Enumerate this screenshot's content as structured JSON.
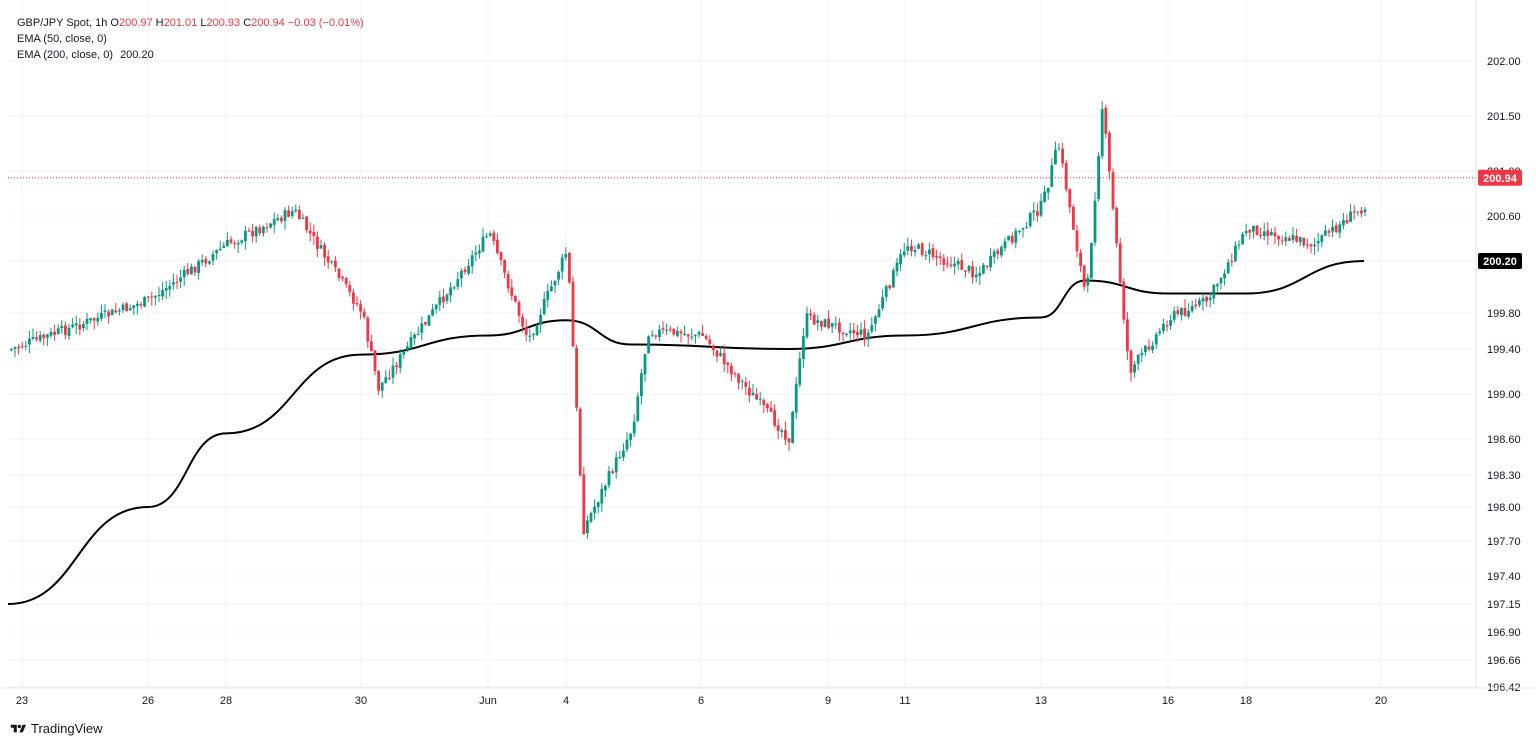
{
  "legend": {
    "symbol": "GBP/JPY Spot",
    "interval": "1h",
    "open_label": "O",
    "open": "200.97",
    "high_label": "H",
    "high": "201.01",
    "low_label": "L",
    "low": "200.93",
    "close_label": "C",
    "close": "200.94",
    "change": "−0.03 (−0.01%)",
    "ema50_label": "EMA (50, close, 0)",
    "ema200_label": "EMA (200, close, 0)",
    "ema200_value": "200.20"
  },
  "brand": {
    "name": "TradingView",
    "icon": "tradingview-logo-icon"
  },
  "colors": {
    "up": "#089981",
    "down": "#f23645",
    "ema": "#000000",
    "grid": "#f0f3fa",
    "axis_text": "#131722"
  },
  "chart_data": {
    "type": "candlestick",
    "y_ticks": [
      "202.00",
      "201.50",
      "201.00",
      "200.60",
      "200.20",
      "199.80",
      "199.40",
      "199.00",
      "198.60",
      "198.30",
      "198.00",
      "197.70",
      "197.40",
      "197.15",
      "196.90",
      "196.66",
      "196.42"
    ],
    "x_ticks": [
      "23",
      "26",
      "28",
      "30",
      "Jun",
      "4",
      "6",
      "9",
      "11",
      "13",
      "16",
      "18",
      "20"
    ],
    "last_price_label": "200.94",
    "ema_label": "200.20",
    "price_anchors": [
      {
        "x": "23",
        "y": 199.4
      },
      {
        "x": "26",
        "y": 199.9
      },
      {
        "x": "28",
        "y": 200.35
      },
      {
        "x": "29",
        "y": 200.65
      },
      {
        "x": "30",
        "y": 199.8
      },
      {
        "x": "30",
        "y": 199.05
      },
      {
        "x": "Jun",
        "y": 200.45
      },
      {
        "x": "3",
        "y": 199.5
      },
      {
        "x": "4",
        "y": 200.3
      },
      {
        "x": "4",
        "y": 197.8
      },
      {
        "x": "5",
        "y": 198.7
      },
      {
        "x": "5",
        "y": 199.6
      },
      {
        "x": "6",
        "y": 199.55
      },
      {
        "x": "8",
        "y": 198.6
      },
      {
        "x": "8",
        "y": 199.75
      },
      {
        "x": "10",
        "y": 199.55
      },
      {
        "x": "11",
        "y": 200.35
      },
      {
        "x": "12",
        "y": 200.1
      },
      {
        "x": "13",
        "y": 200.7
      },
      {
        "x": "13",
        "y": 201.25
      },
      {
        "x": "14",
        "y": 199.9
      },
      {
        "x": "14",
        "y": 201.6
      },
      {
        "x": "15",
        "y": 199.2
      },
      {
        "x": "16",
        "y": 199.75
      },
      {
        "x": "17",
        "y": 199.9
      },
      {
        "x": "18",
        "y": 200.5
      },
      {
        "x": "19",
        "y": 200.35
      },
      {
        "x": "20",
        "y": 200.7
      },
      {
        "x": "20",
        "y": 200.94
      }
    ],
    "ema_anchors": [
      {
        "x": "23",
        "y": 197.15
      },
      {
        "x": "26",
        "y": 198.0
      },
      {
        "x": "28",
        "y": 198.65
      },
      {
        "x": "30",
        "y": 199.35
      },
      {
        "x": "Jun",
        "y": 199.55
      },
      {
        "x": "4",
        "y": 199.72
      },
      {
        "x": "5",
        "y": 199.45
      },
      {
        "x": "8",
        "y": 199.4
      },
      {
        "x": "11",
        "y": 199.55
      },
      {
        "x": "13",
        "y": 199.75
      },
      {
        "x": "14",
        "y": 200.05
      },
      {
        "x": "16",
        "y": 199.95
      },
      {
        "x": "18",
        "y": 199.95
      },
      {
        "x": "20",
        "y": 200.2
      }
    ],
    "current_price": 200.94,
    "ema200_current": 200.2
  }
}
